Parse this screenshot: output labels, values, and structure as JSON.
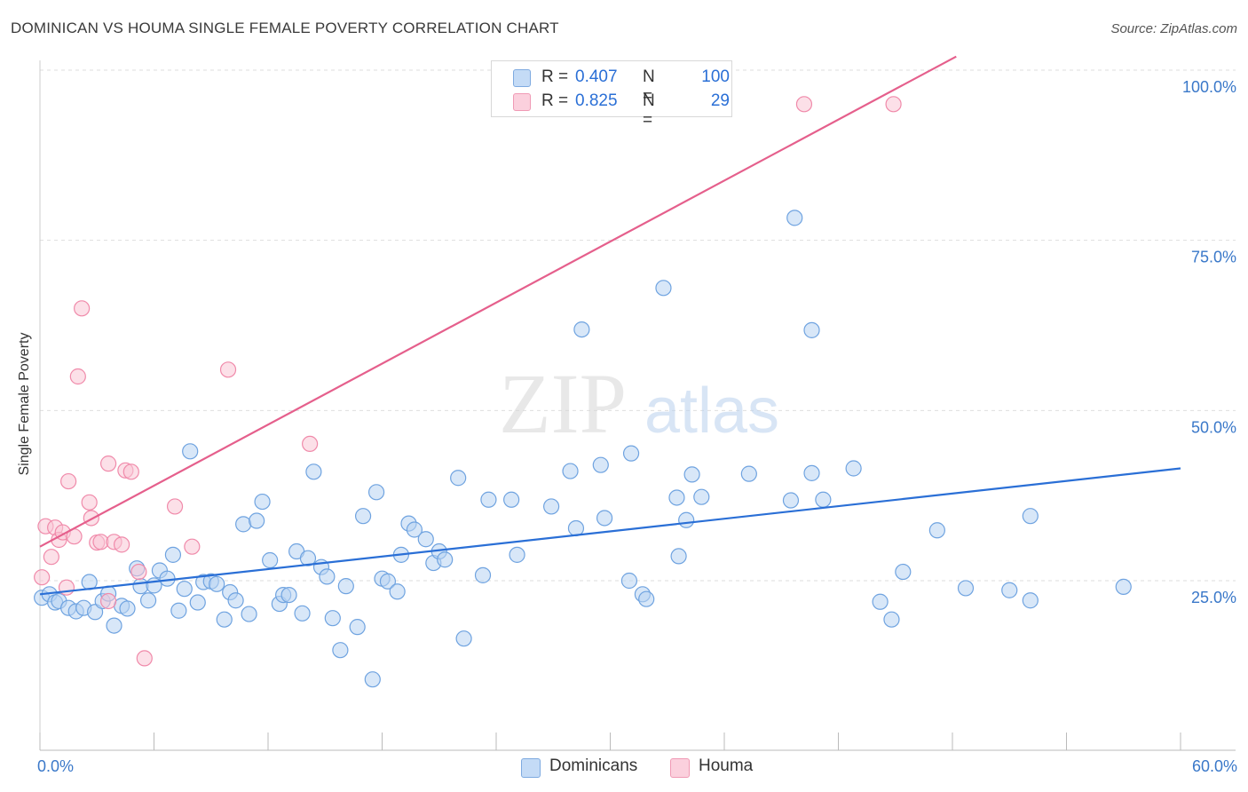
{
  "title": "DOMINICAN VS HOUMA SINGLE FEMALE POVERTY CORRELATION CHART",
  "source": "Source: ZipAtlas.com",
  "watermark": {
    "zip": "ZIP",
    "atlas": "atlas"
  },
  "legend": {
    "r_label": "R =",
    "n_label": "N =",
    "rows": [
      {
        "series": "Dominicans",
        "r": "0.407",
        "n": "100",
        "color": "#a8c8f0"
      },
      {
        "series": "Houma",
        "r": "0.825",
        "n": "29",
        "color": "#f6b8cc"
      }
    ]
  },
  "chart_data": {
    "type": "scatter",
    "title": "DOMINICAN VS HOUMA SINGLE FEMALE POVERTY CORRELATION CHART",
    "xlabel": "",
    "ylabel": "Single Female Poverty",
    "xlim": [
      0,
      60
    ],
    "ylim": [
      0,
      102
    ],
    "x_tick_labels": {
      "min": "0.0%",
      "max": "60.0%"
    },
    "y_ticks": [
      {
        "value": 25,
        "label": "25.0%"
      },
      {
        "value": 50,
        "label": "50.0%"
      },
      {
        "value": 75,
        "label": "75.0%"
      },
      {
        "value": 100,
        "label": "100.0%"
      }
    ],
    "grid": true,
    "legend_position": "bottom-center",
    "series": [
      {
        "name": "Dominicans",
        "color": "#6fa3e0",
        "fill": "#b8d3f3",
        "trend": {
          "x": [
            0,
            60
          ],
          "y": [
            23.0,
            41.5
          ],
          "color": "#2a6fd6"
        },
        "points": [
          {
            "x": 0.1,
            "y": 22.5
          },
          {
            "x": 0.5,
            "y": 23.0
          },
          {
            "x": 0.8,
            "y": 21.8
          },
          {
            "x": 1.0,
            "y": 22.0
          },
          {
            "x": 1.5,
            "y": 21.0
          },
          {
            "x": 1.9,
            "y": 20.5
          },
          {
            "x": 2.3,
            "y": 21.0
          },
          {
            "x": 2.6,
            "y": 24.8
          },
          {
            "x": 2.9,
            "y": 20.4
          },
          {
            "x": 3.3,
            "y": 22.0
          },
          {
            "x": 3.6,
            "y": 23.1
          },
          {
            "x": 3.9,
            "y": 18.4
          },
          {
            "x": 4.3,
            "y": 21.3
          },
          {
            "x": 4.6,
            "y": 20.9
          },
          {
            "x": 5.1,
            "y": 26.8
          },
          {
            "x": 5.3,
            "y": 24.2
          },
          {
            "x": 5.7,
            "y": 22.1
          },
          {
            "x": 6.0,
            "y": 24.3
          },
          {
            "x": 6.3,
            "y": 26.5
          },
          {
            "x": 6.7,
            "y": 25.3
          },
          {
            "x": 7.0,
            "y": 28.8
          },
          {
            "x": 7.3,
            "y": 20.6
          },
          {
            "x": 7.6,
            "y": 23.8
          },
          {
            "x": 7.9,
            "y": 44.0
          },
          {
            "x": 8.3,
            "y": 21.8
          },
          {
            "x": 8.6,
            "y": 24.8
          },
          {
            "x": 9.0,
            "y": 24.9
          },
          {
            "x": 9.3,
            "y": 24.5
          },
          {
            "x": 9.7,
            "y": 19.3
          },
          {
            "x": 10.0,
            "y": 23.3
          },
          {
            "x": 10.3,
            "y": 22.1
          },
          {
            "x": 10.7,
            "y": 33.3
          },
          {
            "x": 11.0,
            "y": 20.1
          },
          {
            "x": 11.4,
            "y": 33.8
          },
          {
            "x": 11.7,
            "y": 36.6
          },
          {
            "x": 12.1,
            "y": 28.0
          },
          {
            "x": 12.6,
            "y": 21.6
          },
          {
            "x": 12.8,
            "y": 22.9
          },
          {
            "x": 13.1,
            "y": 22.9
          },
          {
            "x": 13.5,
            "y": 29.3
          },
          {
            "x": 13.8,
            "y": 20.2
          },
          {
            "x": 14.1,
            "y": 28.3
          },
          {
            "x": 14.4,
            "y": 41.0
          },
          {
            "x": 14.8,
            "y": 27.0
          },
          {
            "x": 15.1,
            "y": 25.6
          },
          {
            "x": 15.4,
            "y": 19.5
          },
          {
            "x": 15.8,
            "y": 14.8
          },
          {
            "x": 16.1,
            "y": 24.2
          },
          {
            "x": 16.7,
            "y": 18.2
          },
          {
            "x": 17.0,
            "y": 34.5
          },
          {
            "x": 17.5,
            "y": 10.5
          },
          {
            "x": 17.7,
            "y": 38.0
          },
          {
            "x": 18.0,
            "y": 25.3
          },
          {
            "x": 18.3,
            "y": 24.9
          },
          {
            "x": 18.8,
            "y": 23.4
          },
          {
            "x": 19.0,
            "y": 28.8
          },
          {
            "x": 19.4,
            "y": 33.4
          },
          {
            "x": 19.7,
            "y": 32.5
          },
          {
            "x": 20.3,
            "y": 31.1
          },
          {
            "x": 20.7,
            "y": 27.6
          },
          {
            "x": 21.0,
            "y": 29.3
          },
          {
            "x": 21.3,
            "y": 28.1
          },
          {
            "x": 22.0,
            "y": 40.1
          },
          {
            "x": 22.3,
            "y": 16.5
          },
          {
            "x": 23.3,
            "y": 25.8
          },
          {
            "x": 23.6,
            "y": 36.9
          },
          {
            "x": 24.8,
            "y": 36.9
          },
          {
            "x": 25.1,
            "y": 28.8
          },
          {
            "x": 26.9,
            "y": 35.9
          },
          {
            "x": 27.9,
            "y": 41.1
          },
          {
            "x": 28.2,
            "y": 32.7
          },
          {
            "x": 28.5,
            "y": 61.9
          },
          {
            "x": 29.5,
            "y": 42.0
          },
          {
            "x": 29.7,
            "y": 34.2
          },
          {
            "x": 31.0,
            "y": 25.0
          },
          {
            "x": 31.1,
            "y": 43.7
          },
          {
            "x": 31.7,
            "y": 23.0
          },
          {
            "x": 31.9,
            "y": 22.3
          },
          {
            "x": 32.8,
            "y": 68.0
          },
          {
            "x": 33.5,
            "y": 37.2
          },
          {
            "x": 33.6,
            "y": 28.6
          },
          {
            "x": 34.0,
            "y": 33.9
          },
          {
            "x": 34.3,
            "y": 40.6
          },
          {
            "x": 34.8,
            "y": 37.3
          },
          {
            "x": 37.3,
            "y": 40.7
          },
          {
            "x": 39.5,
            "y": 36.8
          },
          {
            "x": 39.7,
            "y": 78.3
          },
          {
            "x": 40.6,
            "y": 61.8
          },
          {
            "x": 40.6,
            "y": 40.8
          },
          {
            "x": 41.2,
            "y": 36.9
          },
          {
            "x": 42.8,
            "y": 41.5
          },
          {
            "x": 44.2,
            "y": 21.9
          },
          {
            "x": 44.8,
            "y": 19.3
          },
          {
            "x": 45.4,
            "y": 26.3
          },
          {
            "x": 47.2,
            "y": 32.4
          },
          {
            "x": 48.7,
            "y": 23.9
          },
          {
            "x": 51.0,
            "y": 23.6
          },
          {
            "x": 52.1,
            "y": 34.5
          },
          {
            "x": 52.1,
            "y": 22.1
          },
          {
            "x": 57.0,
            "y": 24.1
          }
        ]
      },
      {
        "name": "Houma",
        "color": "#f08aaa",
        "fill": "#f9c6d5",
        "trend": {
          "x": [
            0,
            48.2
          ],
          "y": [
            30.0,
            102.0
          ],
          "color": "#e55f8c"
        },
        "points": [
          {
            "x": 0.1,
            "y": 25.5
          },
          {
            "x": 0.3,
            "y": 33.0
          },
          {
            "x": 0.6,
            "y": 28.5
          },
          {
            "x": 0.8,
            "y": 32.8
          },
          {
            "x": 1.0,
            "y": 31.0
          },
          {
            "x": 1.2,
            "y": 32.1
          },
          {
            "x": 1.4,
            "y": 24.0
          },
          {
            "x": 1.5,
            "y": 39.6
          },
          {
            "x": 1.8,
            "y": 31.5
          },
          {
            "x": 2.0,
            "y": 55.0
          },
          {
            "x": 2.2,
            "y": 65.0
          },
          {
            "x": 2.6,
            "y": 36.5
          },
          {
            "x": 2.7,
            "y": 34.2
          },
          {
            "x": 3.0,
            "y": 30.6
          },
          {
            "x": 3.2,
            "y": 30.7
          },
          {
            "x": 3.6,
            "y": 22.0
          },
          {
            "x": 3.6,
            "y": 42.2
          },
          {
            "x": 3.9,
            "y": 30.7
          },
          {
            "x": 4.3,
            "y": 30.3
          },
          {
            "x": 4.5,
            "y": 41.2
          },
          {
            "x": 4.8,
            "y": 41.0
          },
          {
            "x": 5.2,
            "y": 26.3
          },
          {
            "x": 5.5,
            "y": 13.6
          },
          {
            "x": 7.1,
            "y": 35.9
          },
          {
            "x": 8.0,
            "y": 30.0
          },
          {
            "x": 9.9,
            "y": 56.0
          },
          {
            "x": 14.2,
            "y": 45.1
          },
          {
            "x": 40.2,
            "y": 95.0
          },
          {
            "x": 44.9,
            "y": 95.0
          }
        ]
      }
    ]
  }
}
